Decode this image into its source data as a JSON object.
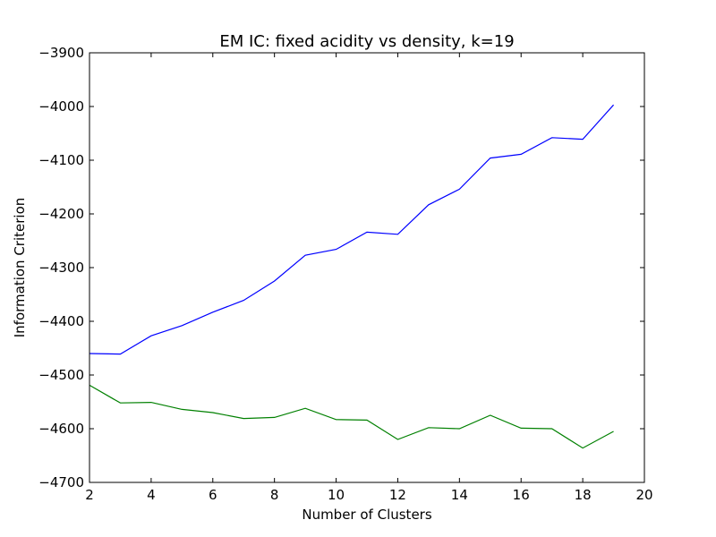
{
  "chart_data": {
    "type": "line",
    "title": "EM IC: fixed acidity vs density, k=19",
    "xlabel": "Number of Clusters",
    "ylabel": "Information Criterion",
    "xlim": [
      2,
      20
    ],
    "ylim": [
      -4700,
      -3900
    ],
    "x_ticks": [
      "2",
      "4",
      "6",
      "8",
      "10",
      "12",
      "14",
      "16",
      "18",
      "20"
    ],
    "y_ticks": [
      "−3900",
      "−4000",
      "−4100",
      "−4200",
      "−4300",
      "−4400",
      "−4500",
      "−4600",
      "−4700"
    ],
    "grid": false,
    "x": [
      2,
      3,
      4,
      5,
      6,
      7,
      8,
      9,
      10,
      11,
      12,
      13,
      14,
      15,
      16,
      17,
      18,
      19
    ],
    "series": [
      {
        "color": "#0000ff",
        "values": [
          -4460,
          -4461,
          -4427,
          -4408,
          -4383,
          -4361,
          -4325,
          -4277,
          -4266,
          -4234,
          -4238,
          -4183,
          -4154,
          -4096,
          -4089,
          -4058,
          -4061,
          -3997
        ]
      },
      {
        "color": "#008000",
        "values": [
          -4519,
          -4552,
          -4551,
          -4564,
          -4570,
          -4581,
          -4579,
          -4562,
          -4583,
          -4584,
          -4620,
          -4598,
          -4600,
          -4575,
          -4599,
          -4600,
          -4636,
          -4605
        ]
      }
    ]
  }
}
